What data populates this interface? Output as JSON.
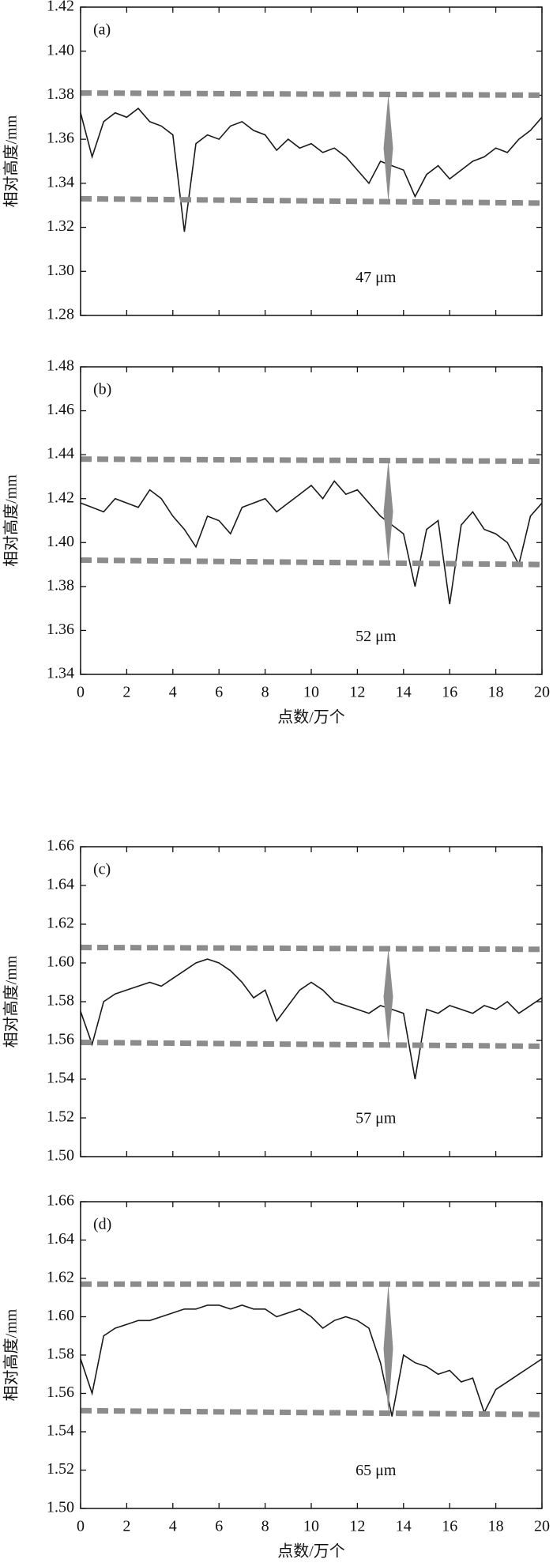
{
  "chart_data": [
    {
      "type": "line",
      "label": "(a)",
      "ylabel": "相对高度/mm",
      "annotation": "47 μm",
      "x": [
        0,
        0.5,
        1,
        1.5,
        2,
        2.5,
        3,
        3.5,
        4,
        4.5,
        5,
        5.5,
        6,
        6.5,
        7,
        7.5,
        8,
        8.5,
        9,
        9.5,
        10,
        10.5,
        11,
        11.5,
        12,
        12.5,
        13,
        13.5,
        14,
        14.5,
        15,
        15.5,
        16,
        16.5,
        17,
        17.5,
        18,
        18.5,
        19,
        19.5,
        20
      ],
      "series": [
        {
          "color": "#1a1a1a",
          "values": [
            1.372,
            1.352,
            1.368,
            1.372,
            1.37,
            1.374,
            1.368,
            1.366,
            1.362,
            1.318,
            1.358,
            1.362,
            1.36,
            1.366,
            1.368,
            1.364,
            1.362,
            1.355,
            1.36,
            1.356,
            1.358,
            1.354,
            1.356,
            1.352,
            1.346,
            1.34,
            1.35,
            1.348,
            1.346,
            1.334,
            1.344,
            1.348,
            1.342,
            1.346,
            1.35,
            1.352,
            1.356,
            1.354,
            1.36,
            1.364,
            1.37
          ]
        },
        {
          "color": "#8c8c8c",
          "dashed": true,
          "x": [
            0,
            20
          ],
          "values": [
            1.381,
            1.38
          ]
        },
        {
          "color": "#8c8c8c",
          "dashed": true,
          "x": [
            0,
            20
          ],
          "values": [
            1.333,
            1.331
          ]
        }
      ],
      "xlim": [
        0,
        20
      ],
      "xticks": [
        0,
        2,
        4,
        6,
        8,
        10,
        12,
        14,
        16,
        18,
        20
      ],
      "xtick_labels": false,
      "ylim": [
        1.28,
        1.42
      ],
      "yticks": [
        1.28,
        {
          "value": 1.3,
          "label": "1.30"
        },
        1.32,
        1.34,
        1.36,
        1.38,
        {
          "value": 1.4,
          "label": "1.40"
        },
        1.42
      ]
    },
    {
      "type": "line",
      "label": "(b)",
      "ylabel": "相对高度/mm",
      "xlabel": "点数/万个",
      "annotation": "52 μm",
      "x": [
        0,
        0.5,
        1,
        1.5,
        2,
        2.5,
        3,
        3.5,
        4,
        4.5,
        5,
        5.5,
        6,
        6.5,
        7,
        7.5,
        8,
        8.5,
        9,
        9.5,
        10,
        10.5,
        11,
        11.5,
        12,
        12.5,
        13,
        13.5,
        14,
        14.5,
        15,
        15.5,
        16,
        16.5,
        17,
        17.5,
        18,
        18.5,
        19,
        19.5,
        20
      ],
      "series": [
        {
          "color": "#1a1a1a",
          "values": [
            1.418,
            1.416,
            1.414,
            1.42,
            1.418,
            1.416,
            1.424,
            1.42,
            1.412,
            1.406,
            1.398,
            1.412,
            1.41,
            1.404,
            1.416,
            1.418,
            1.42,
            1.414,
            1.418,
            1.422,
            1.426,
            1.42,
            1.428,
            1.422,
            1.424,
            1.418,
            1.412,
            1.408,
            1.404,
            1.38,
            1.406,
            1.41,
            1.372,
            1.408,
            1.414,
            1.406,
            1.404,
            1.4,
            1.39,
            1.412,
            1.418
          ]
        },
        {
          "color": "#8c8c8c",
          "dashed": true,
          "x": [
            0,
            20
          ],
          "values": [
            1.438,
            1.437
          ]
        },
        {
          "color": "#8c8c8c",
          "dashed": true,
          "x": [
            0,
            20
          ],
          "values": [
            1.392,
            1.39
          ]
        }
      ],
      "xlim": [
        0,
        20
      ],
      "xticks": [
        0,
        2,
        4,
        6,
        8,
        10,
        12,
        14,
        16,
        18,
        20
      ],
      "xtick_labels": true,
      "ylim": [
        1.34,
        1.48
      ],
      "yticks": [
        1.34,
        1.36,
        1.38,
        {
          "value": 1.4,
          "label": "1.40"
        },
        1.42,
        1.44,
        1.46,
        1.48
      ]
    },
    {
      "type": "line",
      "label": "(c)",
      "ylabel": "相对高度/mm",
      "annotation": "57 μm",
      "x": [
        0,
        0.5,
        1,
        1.5,
        2,
        2.5,
        3,
        3.5,
        4,
        4.5,
        5,
        5.5,
        6,
        6.5,
        7,
        7.5,
        8,
        8.5,
        9,
        9.5,
        10,
        10.5,
        11,
        11.5,
        12,
        12.5,
        13,
        13.5,
        14,
        14.5,
        15,
        15.5,
        16,
        16.5,
        17,
        17.5,
        18,
        18.5,
        19,
        19.5,
        20
      ],
      "series": [
        {
          "color": "#1a1a1a",
          "values": [
            1.575,
            1.558,
            1.58,
            1.584,
            1.586,
            1.588,
            1.59,
            1.588,
            1.592,
            1.596,
            1.6,
            1.602,
            1.6,
            1.596,
            1.59,
            1.582,
            1.586,
            1.57,
            1.578,
            1.586,
            1.59,
            1.586,
            1.58,
            1.578,
            1.576,
            1.574,
            1.578,
            1.576,
            1.574,
            1.54,
            1.576,
            1.574,
            1.578,
            1.576,
            1.574,
            1.578,
            1.576,
            1.58,
            1.574,
            1.578,
            1.582
          ]
        },
        {
          "color": "#8c8c8c",
          "dashed": true,
          "x": [
            0,
            20
          ],
          "values": [
            1.608,
            1.607
          ]
        },
        {
          "color": "#8c8c8c",
          "dashed": true,
          "x": [
            0,
            20
          ],
          "values": [
            1.559,
            1.557
          ]
        }
      ],
      "xlim": [
        0,
        20
      ],
      "xticks": [
        0,
        2,
        4,
        6,
        8,
        10,
        12,
        14,
        16,
        18,
        20
      ],
      "xtick_labels": false,
      "ylim": [
        1.5,
        1.66
      ],
      "yticks": [
        {
          "value": 1.5,
          "label": "1.50"
        },
        1.52,
        1.54,
        1.56,
        1.58,
        {
          "value": 1.6,
          "label": "1.60"
        },
        1.62,
        1.64,
        1.66
      ]
    },
    {
      "type": "line",
      "label": "(d)",
      "ylabel": "相对高度/mm",
      "xlabel": "点数/万个",
      "annotation": "65 μm",
      "x": [
        0,
        0.5,
        1,
        1.5,
        2,
        2.5,
        3,
        3.5,
        4,
        4.5,
        5,
        5.5,
        6,
        6.5,
        7,
        7.5,
        8,
        8.5,
        9,
        9.5,
        10,
        10.5,
        11,
        11.5,
        12,
        12.5,
        13,
        13.5,
        14,
        14.5,
        15,
        15.5,
        16,
        16.5,
        17,
        17.5,
        18,
        18.5,
        19,
        19.5,
        20
      ],
      "series": [
        {
          "color": "#1a1a1a",
          "values": [
            1.578,
            1.56,
            1.59,
            1.594,
            1.596,
            1.598,
            1.598,
            1.6,
            1.602,
            1.604,
            1.604,
            1.606,
            1.606,
            1.604,
            1.606,
            1.604,
            1.604,
            1.6,
            1.602,
            1.604,
            1.6,
            1.594,
            1.598,
            1.6,
            1.598,
            1.594,
            1.576,
            1.548,
            1.58,
            1.576,
            1.574,
            1.57,
            1.572,
            1.566,
            1.568,
            1.55,
            1.562,
            1.566,
            1.57,
            1.574,
            1.578
          ]
        },
        {
          "color": "#8c8c8c",
          "dashed": true,
          "x": [
            0,
            20
          ],
          "values": [
            1.617,
            1.617
          ]
        },
        {
          "color": "#8c8c8c",
          "dashed": true,
          "x": [
            0,
            20
          ],
          "values": [
            1.551,
            1.549
          ]
        }
      ],
      "xlim": [
        0,
        20
      ],
      "xticks": [
        0,
        2,
        4,
        6,
        8,
        10,
        12,
        14,
        16,
        18,
        20
      ],
      "xtick_labels": true,
      "ylim": [
        1.5,
        1.66
      ],
      "yticks": [
        {
          "value": 1.5,
          "label": "1.50"
        },
        1.52,
        1.54,
        1.56,
        1.58,
        {
          "value": 1.6,
          "label": "1.60"
        },
        1.62,
        1.64,
        1.66
      ]
    }
  ]
}
